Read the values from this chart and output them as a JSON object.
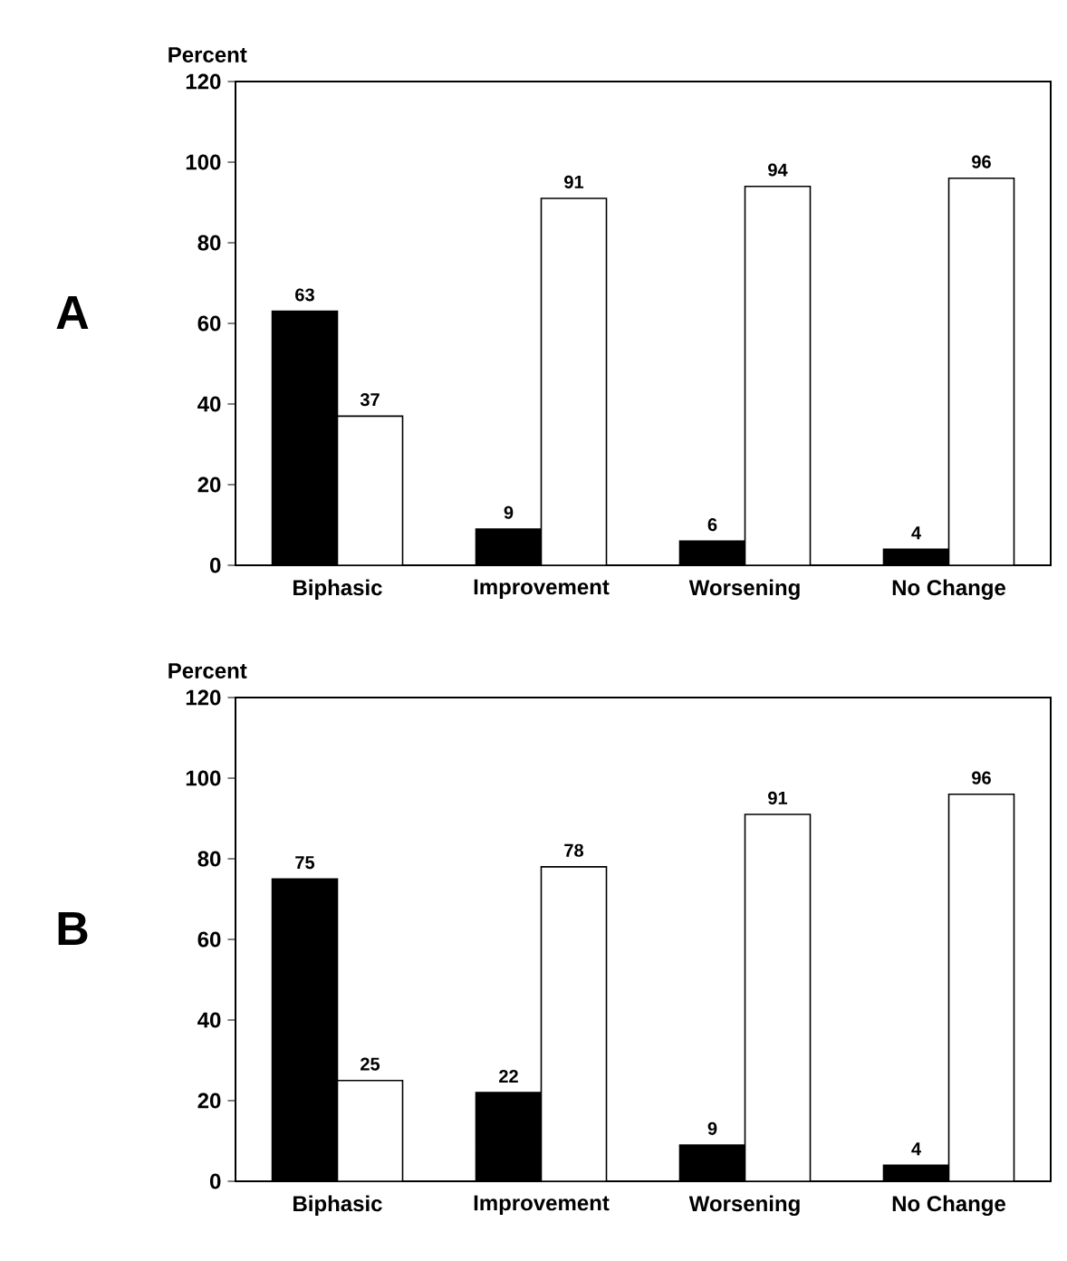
{
  "chart_data": [
    {
      "type": "bar",
      "title": "A",
      "ylabel": "Percent",
      "categories": [
        "Biphasic",
        "Improvement",
        "Worsening",
        "No Change"
      ],
      "series": [
        {
          "color": "#000000",
          "values": [
            63,
            9,
            6,
            4
          ]
        },
        {
          "color": "#ffffff",
          "values": [
            37,
            91,
            94,
            96
          ]
        }
      ],
      "ylim": [
        0,
        120
      ],
      "yticks": [
        0,
        20,
        40,
        60,
        80,
        100,
        120
      ],
      "data_labels": true
    },
    {
      "type": "bar",
      "title": "B",
      "ylabel": "Percent",
      "categories": [
        "Biphasic",
        "Improvement",
        "Worsening",
        "No Change"
      ],
      "series": [
        {
          "color": "#000000",
          "values": [
            75,
            22,
            9,
            4
          ]
        },
        {
          "color": "#ffffff",
          "values": [
            25,
            78,
            91,
            96
          ]
        }
      ],
      "ylim": [
        0,
        120
      ],
      "yticks": [
        0,
        20,
        40,
        60,
        80,
        100,
        120
      ],
      "data_labels": true
    }
  ]
}
